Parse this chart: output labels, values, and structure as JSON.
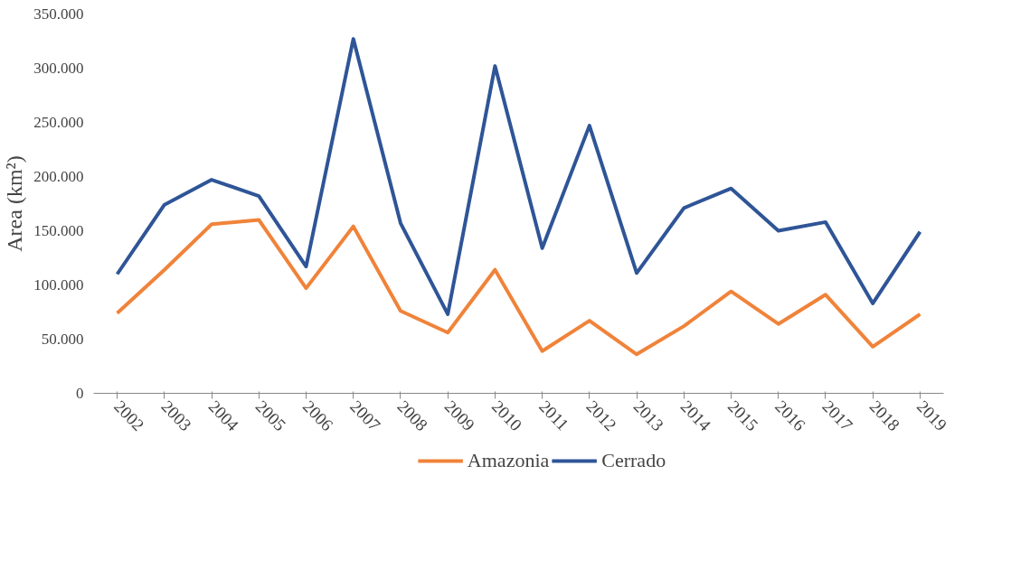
{
  "chart_data": {
    "type": "line",
    "ylabel": "Area (km²)",
    "categories": [
      "2002",
      "2003",
      "2004",
      "2005",
      "2006",
      "2007",
      "2008",
      "2009",
      "2010",
      "2011",
      "2012",
      "2013",
      "2014",
      "2015",
      "2016",
      "2017",
      "2018",
      "2019"
    ],
    "series": [
      {
        "name": "Amazonia",
        "color": "#f0833a",
        "values": [
          74000,
          114000,
          156000,
          160000,
          97000,
          154000,
          76000,
          56000,
          114000,
          39000,
          67000,
          36000,
          62000,
          94000,
          64000,
          91000,
          43000,
          73000
        ]
      },
      {
        "name": "Cerrado",
        "color": "#2f5597",
        "values": [
          110000,
          174000,
          197000,
          182000,
          117000,
          327000,
          157000,
          73000,
          302000,
          134000,
          247000,
          111000,
          171000,
          189000,
          150000,
          158000,
          83000,
          149000
        ]
      }
    ],
    "ylim": [
      0,
      350000
    ],
    "yticks": [
      0,
      {
        "value": 50000,
        "label": "50.000"
      },
      {
        "value": 100000,
        "label": "100.000"
      },
      {
        "value": 150000,
        "label": "150.000"
      },
      {
        "value": 200000,
        "label": "200.000"
      },
      {
        "value": 250000,
        "label": "250.000"
      },
      {
        "value": 300000,
        "label": "300.000"
      },
      {
        "value": 350000,
        "label": "350.000"
      }
    ],
    "grid": false,
    "legend": "bottom",
    "marker": "none",
    "line_style": "solid"
  }
}
